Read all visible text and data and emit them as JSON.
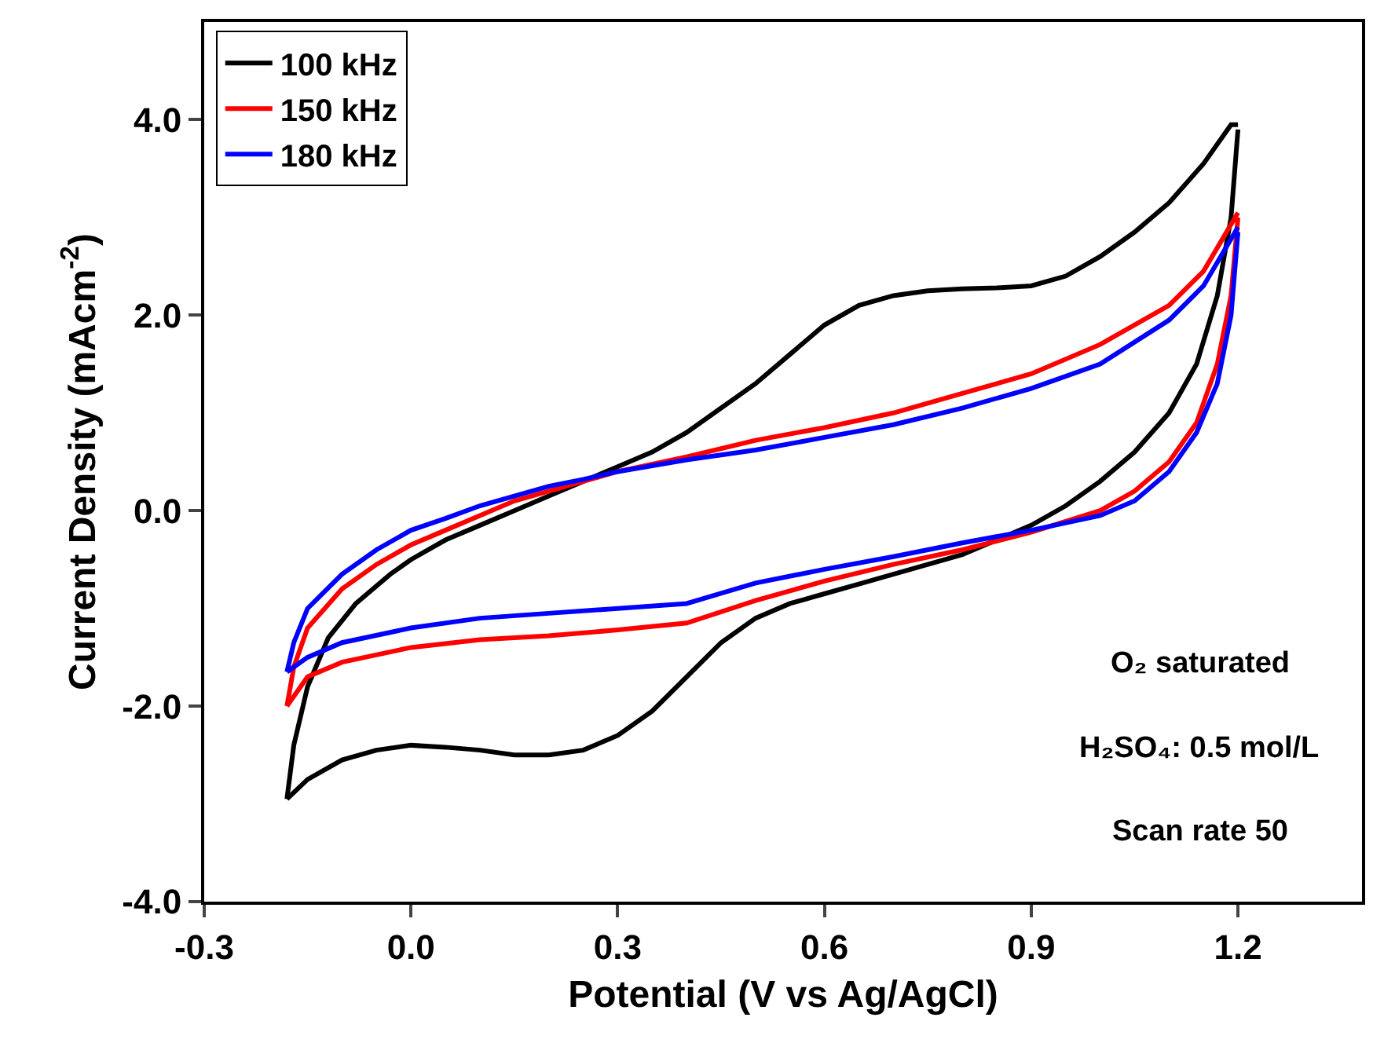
{
  "chart_data": {
    "type": "line",
    "xlabel": "Potential (V vs Ag/AgCl)",
    "ylabel": "Current Density (mAcm$^{-2}$)",
    "xlim": [
      -0.3,
      1.38
    ],
    "xticks": [
      -0.3,
      {
        "value": 0,
        "label": "0.0"
      },
      0.3,
      0.6,
      0.9,
      1.2
    ],
    "ylim": [
      -4,
      5
    ],
    "yticks": [
      {
        "value": -4,
        "label": "-4.0"
      },
      {
        "value": -2,
        "label": "-2.0"
      },
      {
        "value": 0,
        "label": "0.0"
      },
      {
        "value": 2,
        "label": "2.0"
      },
      {
        "value": 4,
        "label": "4.0"
      }
    ],
    "grid": false,
    "legend": "top left",
    "marker": "none",
    "line_style": "solid",
    "annotations": [
      "O₂ saturated",
      "H₂SO₄: 0.5 mol/L",
      "Scan rate 50"
    ],
    "series": [
      {
        "name": "100 kHz",
        "color": "#000000",
        "x": [
          -0.18,
          -0.17,
          -0.15,
          -0.12,
          -0.08,
          -0.03,
          0,
          0.05,
          0.1,
          0.15,
          0.2,
          0.25,
          0.3,
          0.35,
          0.4,
          0.45,
          0.5,
          0.55,
          0.6,
          0.65,
          0.7,
          0.75,
          0.8,
          0.85,
          0.9,
          0.95,
          1,
          1.05,
          1.1,
          1.15,
          1.19,
          1.2
        ],
        "values": [
          -2.95,
          -2.4,
          -1.8,
          -1.3,
          -0.95,
          -0.65,
          -0.5,
          -0.3,
          -0.15,
          0,
          0.15,
          0.3,
          0.45,
          0.6,
          0.8,
          1.05,
          1.3,
          1.6,
          1.9,
          2.1,
          2.2,
          2.25,
          2.27,
          2.28,
          2.3,
          2.4,
          2.6,
          2.85,
          3.15,
          3.55,
          3.95,
          3.95
        ]
      },
      {
        "color": "#000000",
        "x": [
          1.2,
          1.19,
          1.17,
          1.14,
          1.1,
          1.05,
          1,
          0.95,
          0.9,
          0.85,
          0.8,
          0.75,
          0.7,
          0.65,
          0.6,
          0.55,
          0.5,
          0.45,
          0.4,
          0.35,
          0.3,
          0.25,
          0.2,
          0.15,
          0.1,
          0.05,
          0,
          -0.05,
          -0.1,
          -0.15,
          -0.18
        ],
        "values": [
          3.9,
          3,
          2.2,
          1.5,
          1,
          0.6,
          0.3,
          0.05,
          -0.15,
          -0.3,
          -0.45,
          -0.55,
          -0.65,
          -0.75,
          -0.85,
          -0.95,
          -1.1,
          -1.35,
          -1.7,
          -2.05,
          -2.3,
          -2.45,
          -2.5,
          -2.5,
          -2.45,
          -2.42,
          -2.4,
          -2.45,
          -2.55,
          -2.75,
          -2.95
        ]
      },
      {
        "name": "150 kHz",
        "color": "#ff0000",
        "x": [
          -0.18,
          -0.17,
          -0.15,
          -0.1,
          -0.05,
          0,
          0.05,
          0.1,
          0.15,
          0.2,
          0.25,
          0.3,
          0.4,
          0.5,
          0.6,
          0.7,
          0.8,
          0.9,
          1,
          1.1,
          1.15,
          1.2
        ],
        "values": [
          -2,
          -1.6,
          -1.2,
          -0.8,
          -0.55,
          -0.35,
          -0.2,
          -0.05,
          0.1,
          0.2,
          0.3,
          0.4,
          0.55,
          0.72,
          0.85,
          1,
          1.2,
          1.4,
          1.7,
          2.1,
          2.45,
          3.05
        ]
      },
      {
        "color": "#ff0000",
        "x": [
          1.2,
          1.19,
          1.17,
          1.14,
          1.1,
          1.05,
          1,
          0.9,
          0.8,
          0.7,
          0.6,
          0.5,
          0.4,
          0.3,
          0.2,
          0.1,
          0,
          -0.1,
          -0.15,
          -0.18
        ],
        "values": [
          3,
          2.2,
          1.5,
          0.9,
          0.5,
          0.2,
          0,
          -0.22,
          -0.4,
          -0.55,
          -0.72,
          -0.92,
          -1.15,
          -1.22,
          -1.28,
          -1.32,
          -1.4,
          -1.55,
          -1.7,
          -2
        ]
      },
      {
        "name": "180 kHz",
        "color": "#0000ff",
        "x": [
          -0.18,
          -0.17,
          -0.15,
          -0.1,
          -0.05,
          0,
          0.05,
          0.1,
          0.15,
          0.2,
          0.25,
          0.3,
          0.4,
          0.5,
          0.6,
          0.7,
          0.8,
          0.9,
          1,
          1.1,
          1.15,
          1.2
        ],
        "values": [
          -1.65,
          -1.35,
          -1,
          -0.65,
          -0.4,
          -0.2,
          -0.08,
          0.05,
          0.15,
          0.25,
          0.32,
          0.4,
          0.52,
          0.62,
          0.75,
          0.88,
          1.05,
          1.25,
          1.5,
          1.95,
          2.3,
          2.9
        ]
      },
      {
        "color": "#0000ff",
        "x": [
          1.2,
          1.19,
          1.17,
          1.14,
          1.1,
          1.05,
          1,
          0.9,
          0.8,
          0.7,
          0.6,
          0.5,
          0.4,
          0.3,
          0.2,
          0.1,
          0,
          -0.1,
          -0.15,
          -0.18
        ],
        "values": [
          2.85,
          2,
          1.3,
          0.8,
          0.4,
          0.1,
          -0.05,
          -0.2,
          -0.33,
          -0.47,
          -0.6,
          -0.74,
          -0.95,
          -1,
          -1.05,
          -1.1,
          -1.2,
          -1.35,
          -1.5,
          -1.65
        ]
      }
    ]
  }
}
